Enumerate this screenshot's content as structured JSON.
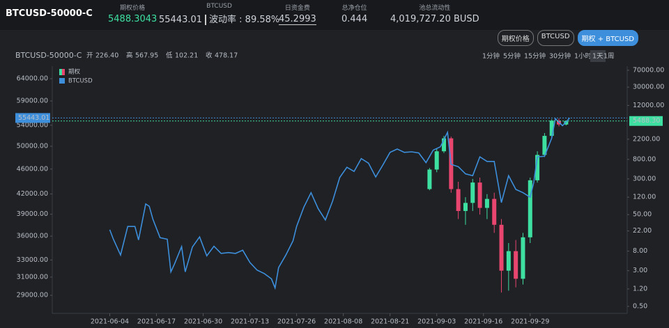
{
  "header": {
    "symbol": "BTCUSD-50000-C",
    "stats": [
      {
        "label": "期权价格",
        "value": "5488.3043"
      },
      {
        "label": "BTCUSD",
        "value": "55443.01",
        "extra": "波动率 : 89.58%"
      },
      {
        "label": "日资金费",
        "value": "45.2993"
      },
      {
        "label": "总净仓位",
        "value": "0.444"
      },
      {
        "label": "池总流动性",
        "value": "4,019,727.20 BUSD"
      }
    ]
  },
  "view_buttons": [
    "期权价格",
    "BTCUSD",
    "期权 + BTCUSD"
  ],
  "intervals": [
    "1分钟",
    "5分钟",
    "15分钟",
    "30分钟",
    "1小时",
    "1天",
    "1周"
  ],
  "chart_data": {
    "type": "combo",
    "title": "BTCUSD-50000-C",
    "ohlc": [
      {
        "label": "开",
        "value": "226.40"
      },
      {
        "label": "高",
        "value": "567.95"
      },
      {
        "label": "低",
        "value": "102.21"
      },
      {
        "label": "收",
        "value": "478.17"
      }
    ],
    "log_scale": true,
    "xlim": [
      "2021-05-19",
      "2021-10-26"
    ],
    "xticks": [
      "2021-06-04",
      "2021-06-17",
      "2021-06-30",
      "2021-07-13",
      "2021-07-26",
      "2021-08-08",
      "2021-08-21",
      "2021-09-03",
      "2021-09-16",
      "2021-09-29"
    ],
    "ylim": [
      27150,
      67000
    ],
    "yticks": [
      {
        "value": 29000,
        "label": "29000.00"
      },
      {
        "value": 31000,
        "label": "31000.00"
      },
      {
        "value": 33000,
        "label": "33000.00"
      },
      {
        "value": 36000,
        "label": "36000.00"
      },
      {
        "value": 39000,
        "label": "39000.00"
      },
      {
        "value": 42000,
        "label": "42000.00"
      },
      {
        "value": 46000,
        "label": "46000.00"
      },
      {
        "value": 50000,
        "label": "50000.00"
      },
      {
        "value": 54000,
        "label": "54000.00"
      },
      {
        "value": 59000,
        "label": "59000.00"
      },
      {
        "value": 64000,
        "label": "64000.00"
      }
    ],
    "y2lim": [
      0.352,
      86000
    ],
    "y2ticks": [
      {
        "value": 0.5,
        "label": "0.50"
      },
      {
        "value": 1.2,
        "label": "1.20"
      },
      {
        "value": 3,
        "label": "3.00"
      },
      {
        "value": 8,
        "label": "8.00"
      },
      {
        "value": 22,
        "label": "22.00"
      },
      {
        "value": 50,
        "label": "50.00"
      },
      {
        "value": 120,
        "label": "120.00"
      },
      {
        "value": 300,
        "label": "300.00"
      },
      {
        "value": 800,
        "label": "800.00"
      },
      {
        "value": 2200,
        "label": "2200.00"
      },
      {
        "value": 12000,
        "label": "12000.00"
      },
      {
        "value": 30000,
        "label": "30000.00"
      },
      {
        "value": 70000,
        "label": "70000.00"
      }
    ],
    "last_price": {
      "value": 55443.01,
      "label": "55443.01"
    },
    "option_last": {
      "value": 5488.3043,
      "label": "5488.30",
      "axis": "y2"
    },
    "series": [
      {
        "name": "期权",
        "type": "candlestick",
        "axis": "y2",
        "up_color": "#3ee0a1",
        "down_color": "#e8456f",
        "x": [
          "2021-09-01",
          "2021-09-03",
          "2021-09-05",
          "2021-09-07",
          "2021-09-09",
          "2021-09-11",
          "2021-09-13",
          "2021-09-15",
          "2021-09-17",
          "2021-09-19",
          "2021-09-21",
          "2021-09-23",
          "2021-09-25",
          "2021-09-27",
          "2021-09-29",
          "2021-10-01",
          "2021-10-03",
          "2021-10-05",
          "2021-10-07",
          "2021-10-09"
        ],
        "open": [
          180,
          480,
          1200,
          2300,
          180,
          60,
          90,
          250,
          70,
          110,
          30,
          3,
          8,
          2,
          16,
          280,
          1000,
          2600,
          5600,
          4600
        ],
        "high": [
          520,
          1400,
          2600,
          2500,
          260,
          120,
          300,
          320,
          140,
          150,
          40,
          12,
          14,
          20,
          320,
          1200,
          3000,
          6000,
          6200,
          5600
        ],
        "low": [
          170,
          420,
          1100,
          150,
          40,
          30,
          60,
          50,
          40,
          20,
          1.0,
          1.1,
          1.3,
          1.5,
          12,
          250,
          900,
          2400,
          4200,
          4400
        ],
        "close": [
          480,
          1200,
          2300,
          180,
          60,
          90,
          250,
          70,
          110,
          30,
          3,
          8,
          2,
          16,
          280,
          1000,
          2600,
          5600,
          4600,
          5488.3043
        ]
      },
      {
        "name": "BTCUSD",
        "type": "line",
        "color": "#3d8fdc",
        "x": [
          "2021-06-04",
          "2021-06-05",
          "2021-06-07",
          "2021-06-09",
          "2021-06-11",
          "2021-06-12",
          "2021-06-14",
          "2021-06-15",
          "2021-06-16",
          "2021-06-18",
          "2021-06-20",
          "2021-06-21",
          "2021-06-22",
          "2021-06-24",
          "2021-06-25",
          "2021-06-27",
          "2021-06-29",
          "2021-07-01",
          "2021-07-03",
          "2021-07-05",
          "2021-07-07",
          "2021-07-09",
          "2021-07-11",
          "2021-07-13",
          "2021-07-15",
          "2021-07-17",
          "2021-07-19",
          "2021-07-20",
          "2021-07-21",
          "2021-07-23",
          "2021-07-25",
          "2021-07-26",
          "2021-07-28",
          "2021-07-30",
          "2021-08-01",
          "2021-08-03",
          "2021-08-05",
          "2021-08-07",
          "2021-08-09",
          "2021-08-11",
          "2021-08-13",
          "2021-08-15",
          "2021-08-17",
          "2021-08-19",
          "2021-08-21",
          "2021-08-23",
          "2021-08-25",
          "2021-08-27",
          "2021-08-29",
          "2021-08-31",
          "2021-09-02",
          "2021-09-04",
          "2021-09-06",
          "2021-09-07",
          "2021-09-09",
          "2021-09-11",
          "2021-09-13",
          "2021-09-15",
          "2021-09-17",
          "2021-09-19",
          "2021-09-21",
          "2021-09-23",
          "2021-09-25",
          "2021-09-27",
          "2021-09-29",
          "2021-09-30",
          "2021-10-01",
          "2021-10-03",
          "2021-10-05",
          "2021-10-06",
          "2021-10-08",
          "2021-10-10"
        ],
        "values": [
          36850,
          35600,
          33600,
          37300,
          37300,
          35500,
          40500,
          40150,
          38300,
          35800,
          35600,
          31600,
          32500,
          34650,
          31600,
          34600,
          35900,
          33500,
          34700,
          33800,
          33900,
          33800,
          34200,
          32700,
          31800,
          31400,
          30800,
          29800,
          32100,
          33600,
          35400,
          37300,
          40000,
          42200,
          39800,
          38200,
          40900,
          44600,
          46300,
          45600,
          47800,
          47000,
          44700,
          46700,
          48900,
          49500,
          48900,
          49000,
          48800,
          47100,
          49300,
          49900,
          52600,
          46800,
          46400,
          45200,
          44900,
          48100,
          47300,
          47300,
          40700,
          44900,
          42700,
          42200,
          41500,
          43800,
          48100,
          48200,
          51500,
          55300,
          53900,
          55443.01
        ]
      }
    ]
  }
}
